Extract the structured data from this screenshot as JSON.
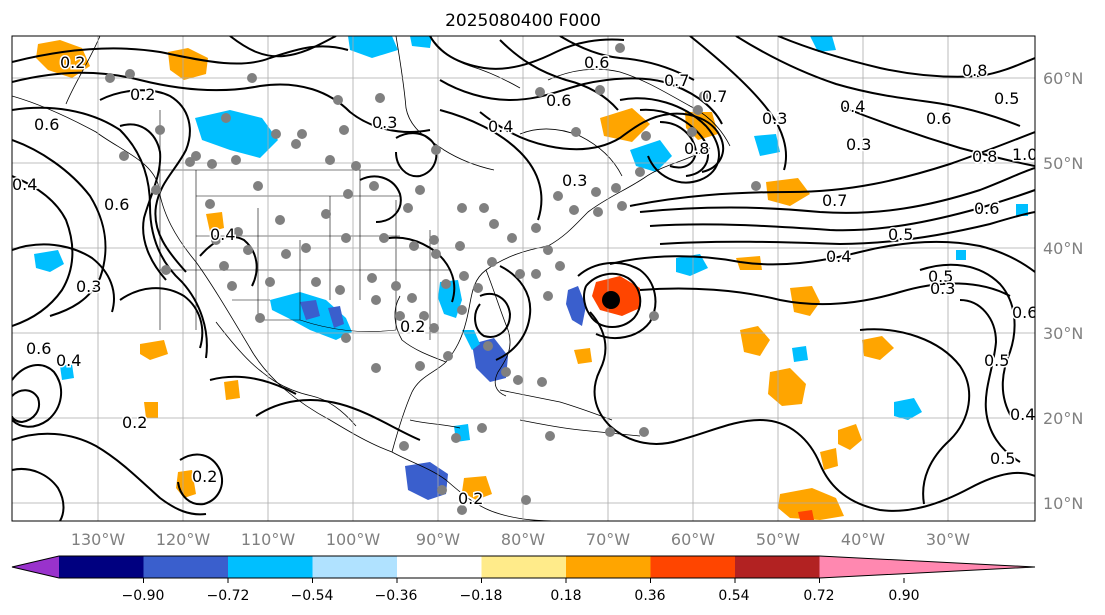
{
  "title": "2025080400 F000",
  "lon_labels": [
    "130°W",
    "120°W",
    "110°W",
    "100°W",
    "90°W",
    "80°W",
    "70°W",
    "60°W",
    "50°W",
    "40°W",
    "30°W"
  ],
  "lat_labels": [
    "60°N",
    "50°N",
    "40°N",
    "30°N",
    "20°N",
    "10°N"
  ],
  "colorbar": {
    "ticks": [
      "−0.90",
      "−0.72",
      "−0.54",
      "−0.36",
      "−0.18",
      "0.18",
      "0.36",
      "0.54",
      "0.72",
      "0.90"
    ],
    "colors": [
      "#9932cc",
      "#000080",
      "#3a5fcd",
      "#00bfff",
      "#b0e2ff",
      "#ffffff",
      "#ffeb8a",
      "#ffa500",
      "#ff4500",
      "#b22222",
      "#ff88b0"
    ]
  },
  "contour_labels": [
    "0.2",
    "0.2",
    "0.6",
    "0.4",
    "0.6",
    "0.3",
    "0.3",
    "0.4",
    "0.6",
    "0.6",
    "0.3",
    "0.7",
    "0.8",
    "0.7",
    "0.8",
    "0.6",
    "0.4",
    "0.3",
    "0.5",
    "0.8",
    "1.0",
    "0.3",
    "0.7",
    "0.6",
    "0.5",
    "0.4",
    "0.5",
    "0.6",
    "0.5",
    "0.3",
    "0.2",
    "0.2",
    "0.6",
    "0.4",
    "0.4",
    "0.2",
    "0.5",
    "0.4",
    "0.2"
  ],
  "marker": {
    "label": "storm center"
  }
}
